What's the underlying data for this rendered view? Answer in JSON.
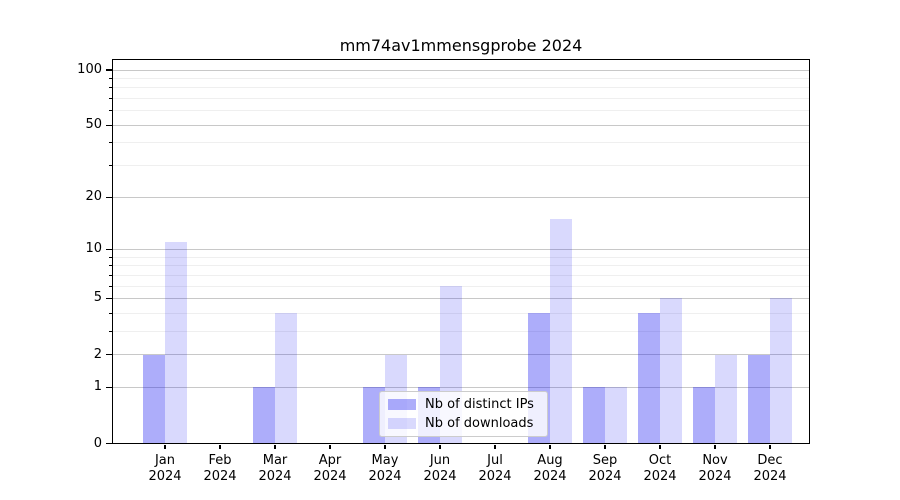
{
  "chart_data": {
    "type": "bar",
    "title": "mm74av1mmensgprobe 2024",
    "y_scale": "log1p",
    "ylim": [
      0,
      100
    ],
    "yticks": [
      0,
      1,
      2,
      5,
      10,
      20,
      50,
      100
    ],
    "minor_yticks": [
      3,
      4,
      6,
      7,
      8,
      9,
      30,
      40,
      60,
      70,
      80,
      90
    ],
    "grid": true,
    "legend_position": "inside-bottom-center",
    "categories": [
      {
        "month": "Jan",
        "year": "2024"
      },
      {
        "month": "Feb",
        "year": "2024"
      },
      {
        "month": "Mar",
        "year": "2024"
      },
      {
        "month": "Apr",
        "year": "2024"
      },
      {
        "month": "May",
        "year": "2024"
      },
      {
        "month": "Jun",
        "year": "2024"
      },
      {
        "month": "Jul",
        "year": "2024"
      },
      {
        "month": "Aug",
        "year": "2024"
      },
      {
        "month": "Sep",
        "year": "2024"
      },
      {
        "month": "Oct",
        "year": "2024"
      },
      {
        "month": "Nov",
        "year": "2024"
      },
      {
        "month": "Dec",
        "year": "2024"
      }
    ],
    "series": [
      {
        "name": "Nb of distinct IPs",
        "color": "rgba(20,20,240,0.35)",
        "values": [
          2,
          0,
          1,
          0,
          1,
          1,
          0,
          4,
          1,
          4,
          1,
          2
        ]
      },
      {
        "name": "Nb of downloads",
        "color": "rgba(20,20,240,0.16)",
        "values": [
          11,
          0,
          4,
          0,
          2,
          6,
          0,
          15,
          1,
          5,
          2,
          5
        ]
      }
    ]
  },
  "colors": {
    "grid_major": "#c8c8c8",
    "grid_minor": "#efefef",
    "spine": "#000000",
    "legend_border": "#cccccc",
    "text": "#000000"
  }
}
